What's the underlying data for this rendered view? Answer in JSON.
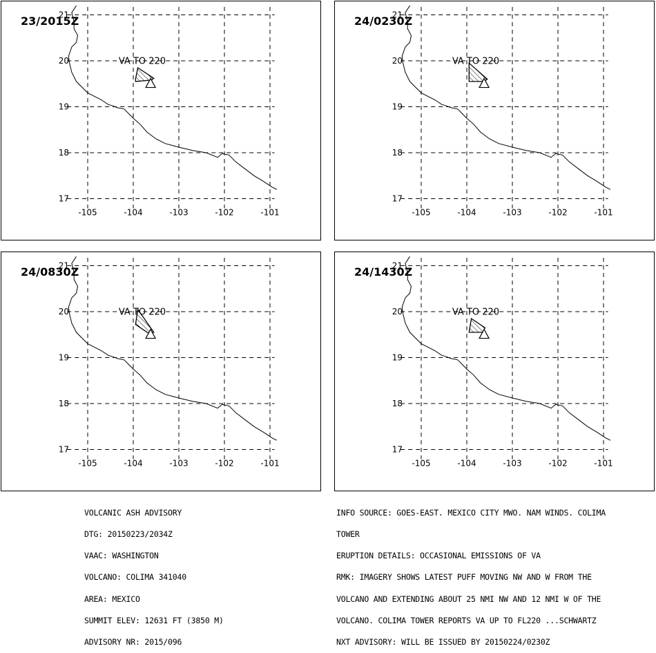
{
  "panels": [
    {
      "title": "23/2015Z",
      "annotation": "VA  TO 220",
      "ash_polygon": [
        [
          -103.9,
          19.85
        ],
        [
          -103.55,
          19.62
        ],
        [
          -103.6,
          19.58
        ],
        [
          -103.95,
          19.55
        ],
        [
          -103.95,
          19.6
        ]
      ]
    },
    {
      "title": "24/0230Z",
      "annotation": "VA  TO 220",
      "ash_polygon": [
        [
          -103.95,
          19.95
        ],
        [
          -103.55,
          19.6
        ],
        [
          -103.62,
          19.55
        ],
        [
          -103.95,
          19.55
        ]
      ]
    },
    {
      "title": "24/0830Z",
      "annotation": "VA  TO 220",
      "ash_polygon": [
        [
          -103.9,
          20.05
        ],
        [
          -103.55,
          19.55
        ],
        [
          -103.65,
          19.52
        ],
        [
          -103.95,
          19.72
        ]
      ]
    },
    {
      "title": "24/1430Z",
      "annotation": "VA  TO 220",
      "ash_polygon": [
        [
          -103.9,
          19.85
        ],
        [
          -103.6,
          19.65
        ],
        [
          -103.65,
          19.55
        ],
        [
          -103.95,
          19.55
        ]
      ]
    }
  ],
  "axes": {
    "x_ticks": [
      -105,
      -104,
      -103,
      -102,
      -101
    ],
    "y_ticks": [
      21,
      20,
      19,
      18,
      17
    ],
    "lon_range": [
      -105.3,
      -100.9
    ],
    "lat_range": [
      17,
      21.2
    ]
  },
  "volcano": {
    "name": "COLIMA",
    "lon": -103.62,
    "lat": 19.51
  },
  "coastline": [
    [
      -105.25,
      21.2
    ],
    [
      -105.35,
      21.05
    ],
    [
      -105.3,
      20.85
    ],
    [
      -105.3,
      20.7
    ],
    [
      -105.22,
      20.55
    ],
    [
      -105.25,
      20.4
    ],
    [
      -105.35,
      20.3
    ],
    [
      -105.42,
      20.1
    ],
    [
      -105.4,
      19.95
    ],
    [
      -105.35,
      19.75
    ],
    [
      -105.25,
      19.55
    ],
    [
      -105.1,
      19.4
    ],
    [
      -105.0,
      19.3
    ],
    [
      -104.8,
      19.2
    ],
    [
      -104.7,
      19.15
    ],
    [
      -104.55,
      19.05
    ],
    [
      -104.45,
      19.02
    ],
    [
      -104.35,
      18.98
    ],
    [
      -104.2,
      18.95
    ],
    [
      -104.1,
      18.85
    ],
    [
      -104.0,
      18.75
    ],
    [
      -103.85,
      18.62
    ],
    [
      -103.7,
      18.45
    ],
    [
      -103.5,
      18.3
    ],
    [
      -103.3,
      18.2
    ],
    [
      -103.0,
      18.12
    ],
    [
      -102.7,
      18.05
    ],
    [
      -102.4,
      18.0
    ],
    [
      -102.15,
      17.9
    ],
    [
      -102.05,
      17.98
    ],
    [
      -101.9,
      17.95
    ],
    [
      -101.75,
      17.8
    ],
    [
      -101.55,
      17.65
    ],
    [
      -101.35,
      17.5
    ],
    [
      -101.15,
      17.38
    ],
    [
      -100.95,
      17.25
    ],
    [
      -100.85,
      17.2
    ]
  ],
  "advisory_left": [
    "VOLCANIC ASH ADVISORY",
    "DTG: 20150223/2034Z",
    "VAAC: WASHINGTON",
    "VOLCANO: COLIMA 341040",
    "AREA: MEXICO",
    "SUMMIT ELEV: 12631 FT (3850 M)",
    "ADVISORY NR: 2015/096"
  ],
  "advisory_right": [
    "INFO SOURCE: GOES-EAST. MEXICO CITY MWO. NAM WINDS. COLIMA",
    "TOWER",
    "ERUPTION DETAILS: OCCASIONAL EMISSIONS OF VA",
    "RMK: IMAGERY SHOWS LATEST PUFF MOVING NW AND W FROM THE",
    "VOLCANO AND EXTENDING ABOUT 25 NMI NW AND 12 NMI W OF THE",
    "VOLCANO. COLIMA TOWER REPORTS VA UP TO FL220 ...SCHWARTZ",
    "NXT ADVISORY: WILL BE ISSUED BY 20150224/0230Z"
  ]
}
